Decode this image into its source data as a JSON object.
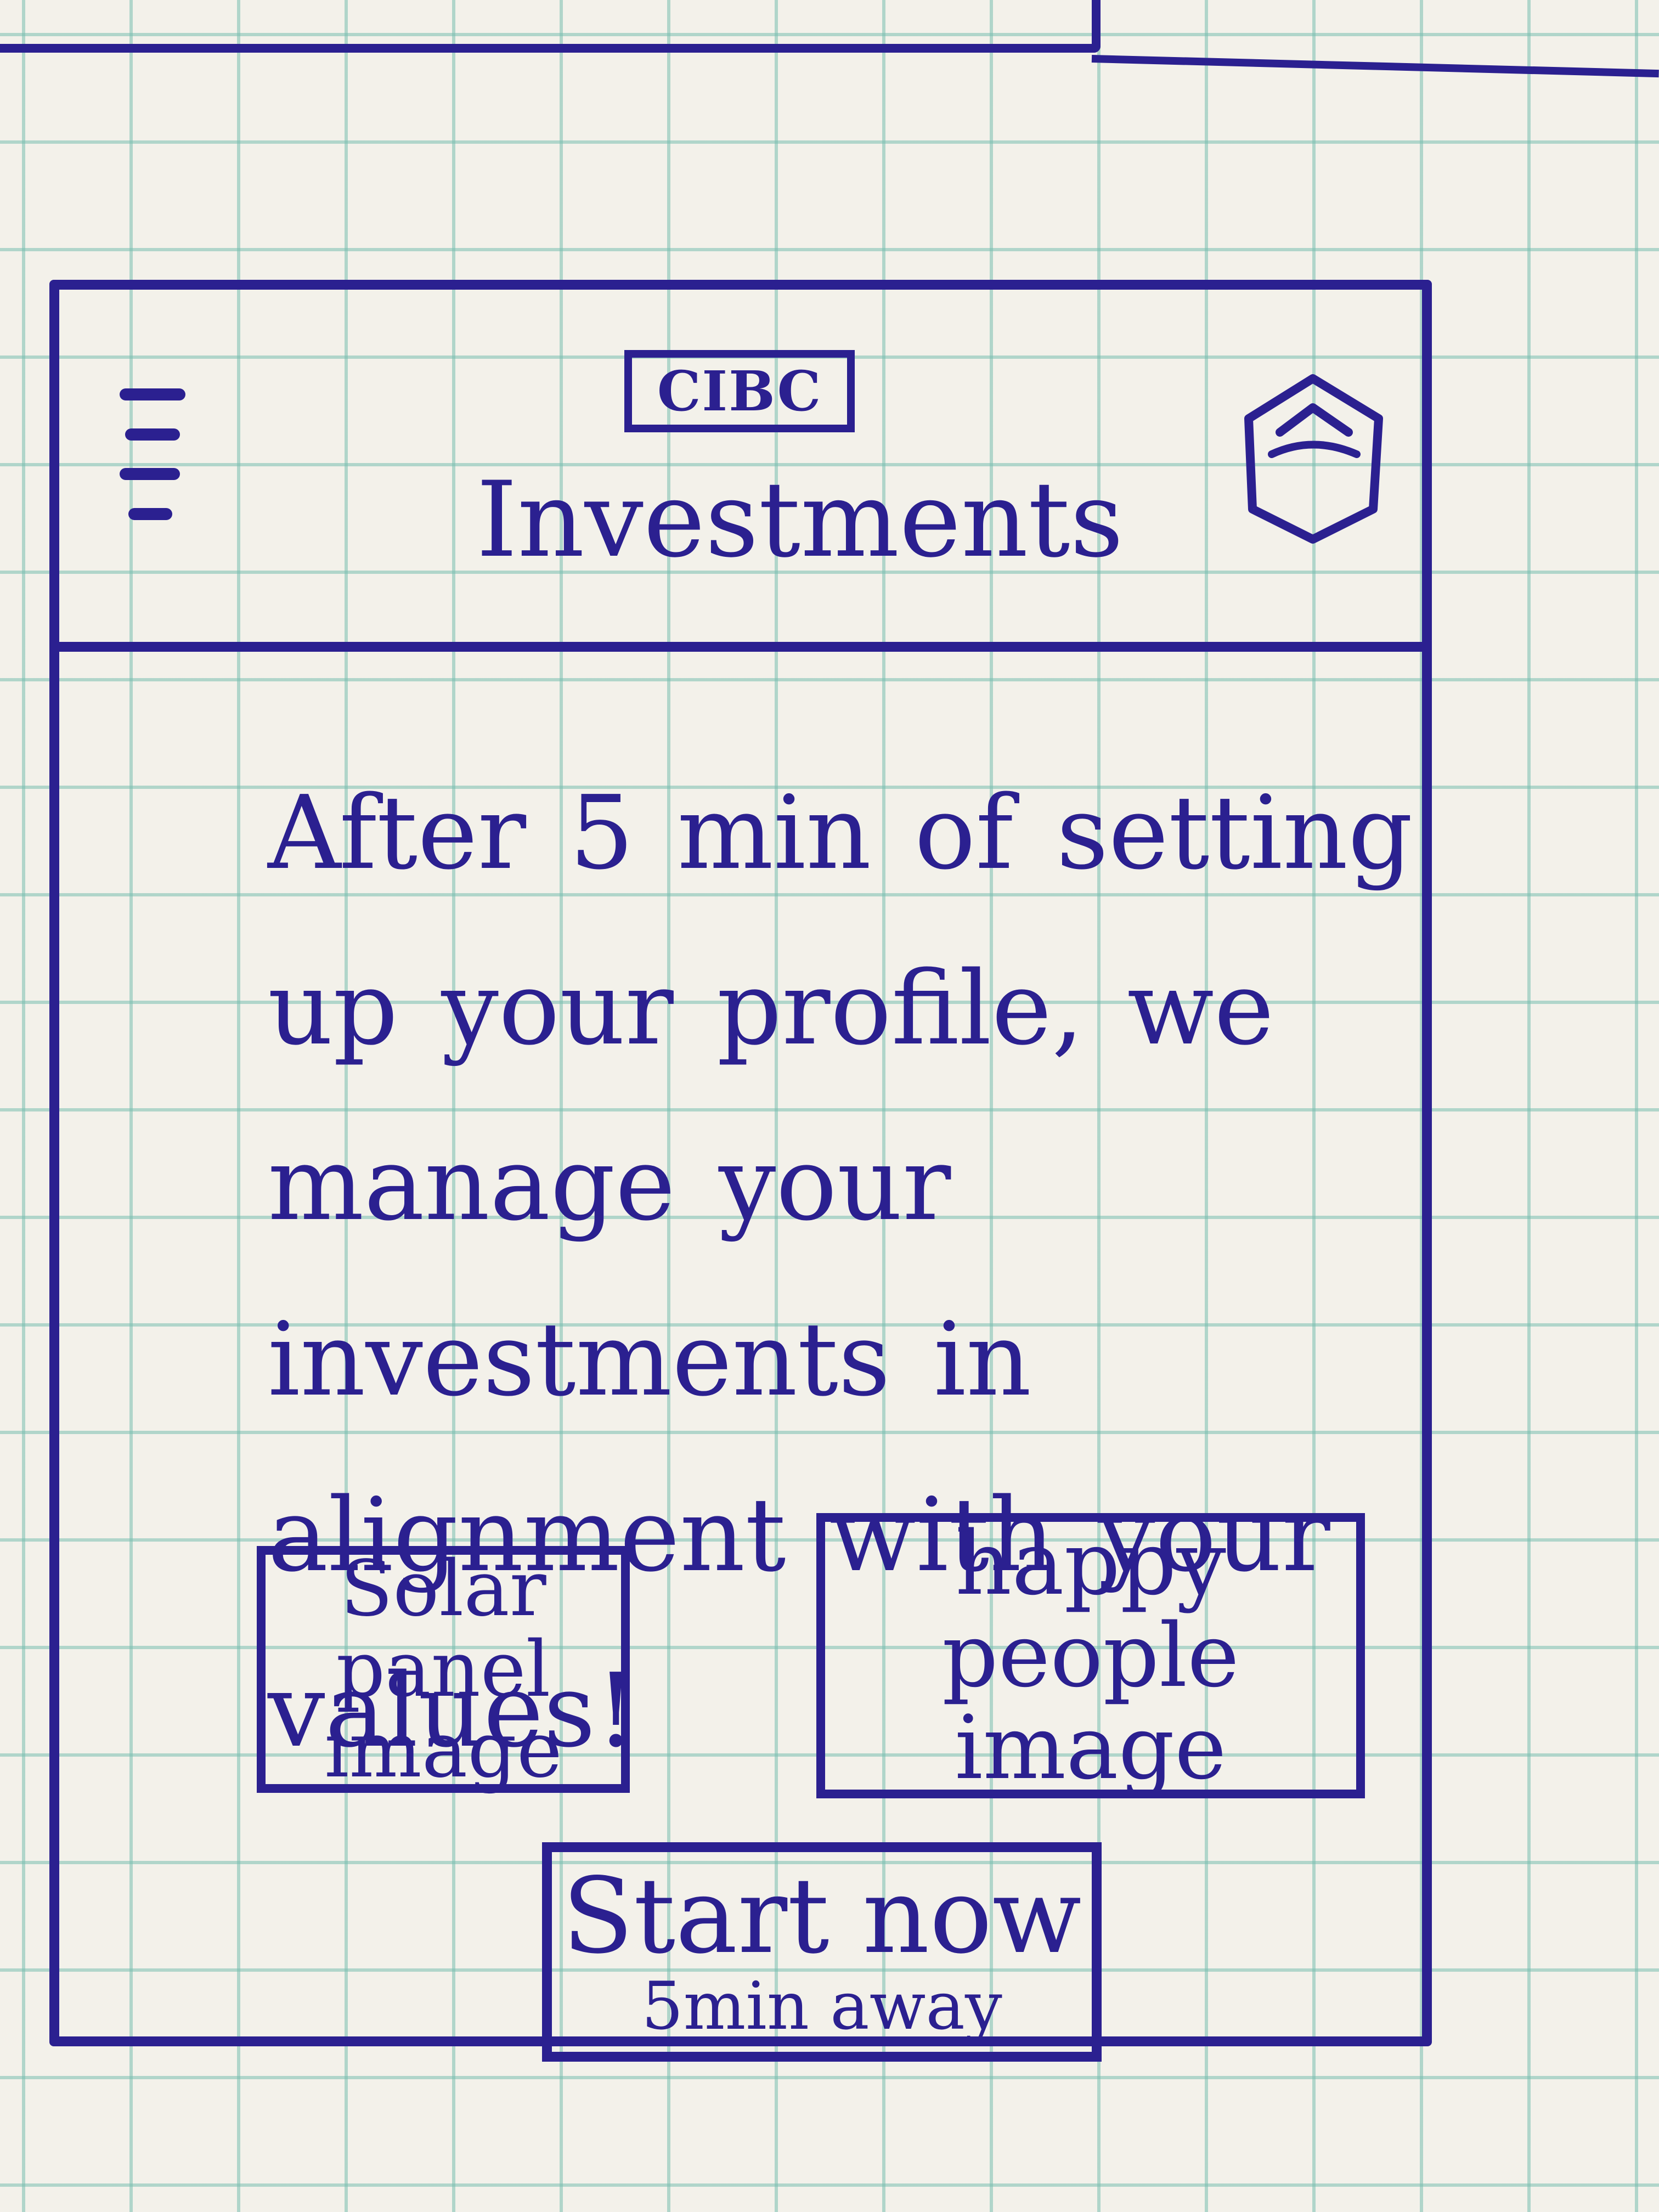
{
  "header": {
    "logo_text": "CIBC",
    "title": "Investments",
    "menu_icon": "hamburger-menu-icon",
    "profile_icon": "profile-shield-icon"
  },
  "main": {
    "tagline": "After 5 min of setting up your profile, we manage your investments in alignment with your values!",
    "images": [
      {
        "label": "Solar panel image"
      },
      {
        "label": "happy people image"
      }
    ],
    "cta": {
      "label": "Start now",
      "sublabel": "5min away"
    }
  },
  "colors": {
    "ink": "#2b2090",
    "paper": "#f3f1ea",
    "grid": "#78beaf"
  }
}
